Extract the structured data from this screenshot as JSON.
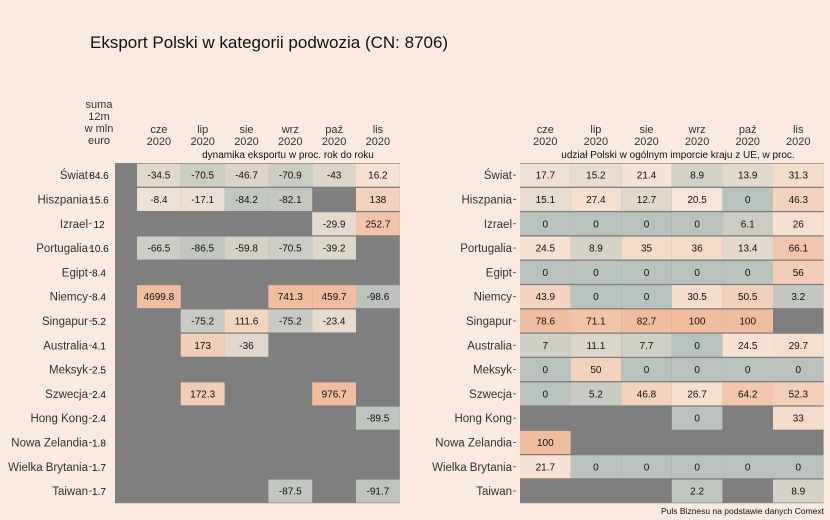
{
  "title": "Eksport Polski w kategorii podwozia (CN: 8706)",
  "source": "Puls Biznesu na podstawie danych Comext",
  "colors": {
    "background": "#fbeadf",
    "missing": "#7f7f7f",
    "low": "#b9c2bd",
    "mid": "#f6e4d6",
    "high": "#f1bd9f"
  },
  "chart_data": [
    {
      "type": "heatmap",
      "subtitle": "dynamika eksportu w proc. rok do roku",
      "sum_header": [
        "suma",
        "12m",
        "w mln",
        "euro"
      ],
      "columns": [
        [
          "cze",
          "2020"
        ],
        [
          "lip",
          "2020"
        ],
        [
          "sie",
          "2020"
        ],
        [
          "wrz",
          "2020"
        ],
        [
          "paź",
          "2020"
        ],
        [
          "lis",
          "2020"
        ]
      ],
      "rows": [
        "Świat",
        "Hiszpania",
        "Izrael",
        "Portugalia",
        "Egipt",
        "Niemcy",
        "Singapur",
        "Australia",
        "Meksyk",
        "Szwecja",
        "Hong Kong",
        "Nowa Zelandia",
        "Wielka Brytania",
        "Taiwan"
      ],
      "sums": [
        "84.6",
        "15.6",
        "12",
        "10.6",
        "8.4",
        "8.4",
        "5.2",
        "4.1",
        "2.5",
        "2.4",
        "2.4",
        "1.8",
        "1.7",
        "1.7"
      ],
      "values": [
        [
          -34.5,
          -70.5,
          -46.7,
          -70.9,
          -43,
          16.2
        ],
        [
          -8.4,
          -17.1,
          -84.2,
          -82.1,
          null,
          138
        ],
        [
          null,
          null,
          null,
          null,
          -29.9,
          252.7
        ],
        [
          -66.5,
          -86.5,
          -59.8,
          -70.5,
          -39.2,
          null
        ],
        [
          null,
          null,
          null,
          null,
          null,
          null
        ],
        [
          4699.8,
          null,
          null,
          741.3,
          459.7,
          -98.6
        ],
        [
          null,
          -75.2,
          111.6,
          -75.2,
          -23.4,
          null
        ],
        [
          null,
          173,
          -36,
          null,
          null,
          null
        ],
        [
          null,
          null,
          null,
          null,
          null,
          null
        ],
        [
          null,
          172.3,
          null,
          null,
          976.7,
          null
        ],
        [
          null,
          null,
          null,
          null,
          null,
          -89.5
        ],
        [
          null,
          null,
          null,
          null,
          null,
          null
        ],
        [
          null,
          null,
          null,
          null,
          null,
          null
        ],
        [
          null,
          null,
          null,
          -87.5,
          null,
          -91.7
        ]
      ]
    },
    {
      "type": "heatmap",
      "subtitle": "udział Polski w ogólnym imporcie kraju z UE, w proc.",
      "columns": [
        [
          "cze",
          "2020"
        ],
        [
          "lip",
          "2020"
        ],
        [
          "sie",
          "2020"
        ],
        [
          "wrz",
          "2020"
        ],
        [
          "paź",
          "2020"
        ],
        [
          "lis",
          "2020"
        ]
      ],
      "rows": [
        "Świat",
        "Hiszpania",
        "Izrael",
        "Portugalia",
        "Egipt",
        "Niemcy",
        "Singapur",
        "Australia",
        "Meksyk",
        "Szwecja",
        "Hong Kong",
        "Nowa Zelandia",
        "Wielka Brytania",
        "Taiwan"
      ],
      "values": [
        [
          17.7,
          15.2,
          21.4,
          8.9,
          13.9,
          31.3
        ],
        [
          15.1,
          27.4,
          12.7,
          20.5,
          0,
          46.3
        ],
        [
          0,
          0,
          0,
          0,
          6.1,
          26
        ],
        [
          24.5,
          8.9,
          35,
          36,
          13.4,
          66.1
        ],
        [
          0,
          0,
          0,
          0,
          0,
          56
        ],
        [
          43.9,
          0,
          0,
          30.5,
          50.5,
          3.2
        ],
        [
          78.6,
          71.1,
          82.7,
          100,
          100,
          null
        ],
        [
          7,
          11.1,
          7.7,
          0,
          24.5,
          29.7
        ],
        [
          0,
          50,
          0,
          0,
          0,
          0
        ],
        [
          0,
          5.2,
          46.8,
          26.7,
          64.2,
          52.3
        ],
        [
          null,
          null,
          null,
          0,
          null,
          33
        ],
        [
          100,
          null,
          null,
          null,
          null,
          null
        ],
        [
          21.7,
          0,
          0,
          0,
          0,
          0
        ],
        [
          null,
          null,
          null,
          2.2,
          null,
          8.9
        ]
      ]
    }
  ]
}
